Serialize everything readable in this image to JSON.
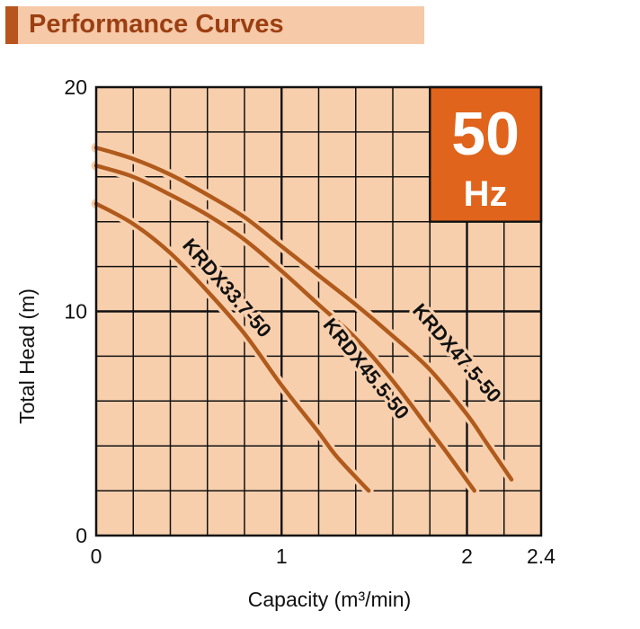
{
  "header": {
    "title": "Performance Curves"
  },
  "badge": {
    "value": "50",
    "unit": "Hz",
    "color": "#e0641c"
  },
  "colors": {
    "plot_bg": "#f8cfad",
    "grid": "#111111",
    "curve": "#b05a1c",
    "curve_halo": "#f8cfad"
  },
  "chart_data": {
    "type": "line",
    "title": "Performance Curves",
    "xlabel": "Capacity (m³/min)",
    "ylabel": "Total Head (m)",
    "xlim": [
      0,
      2.4
    ],
    "ylim": [
      0,
      20
    ],
    "x_ticks": [
      0,
      1,
      2,
      2.4
    ],
    "x_tick_labels": [
      "0",
      "1",
      "2",
      "2.4"
    ],
    "y_ticks": [
      0,
      10,
      20
    ],
    "y_tick_labels": [
      "0",
      "10",
      "20"
    ],
    "x_grid_step": 0.2,
    "y_grid_step": 2,
    "series": [
      {
        "name": "KRDX33.7-50",
        "x": [
          0,
          0.2,
          0.4,
          0.6,
          0.8,
          1.0,
          1.2,
          1.3,
          1.47
        ],
        "y": [
          14.8,
          13.9,
          12.6,
          10.9,
          9.0,
          6.7,
          4.6,
          3.5,
          2.0
        ]
      },
      {
        "name": "KRDX45.5-50",
        "x": [
          0,
          0.2,
          0.4,
          0.6,
          0.8,
          1.0,
          1.2,
          1.4,
          1.6,
          1.8,
          1.9,
          2.04
        ],
        "y": [
          16.5,
          16.0,
          15.2,
          14.3,
          13.2,
          11.8,
          10.3,
          8.8,
          6.9,
          4.7,
          3.6,
          2.0
        ]
      },
      {
        "name": "KRDX47.5-50",
        "x": [
          0,
          0.2,
          0.4,
          0.6,
          0.8,
          1.0,
          1.2,
          1.4,
          1.6,
          1.8,
          2.0,
          2.1,
          2.24
        ],
        "y": [
          17.3,
          16.8,
          16.1,
          15.2,
          14.2,
          12.9,
          11.6,
          10.3,
          8.9,
          7.4,
          5.4,
          4.2,
          2.5
        ]
      }
    ],
    "curve_labels": [
      {
        "text": "KRDX33.7-50",
        "x": 0.7,
        "y": 11.0,
        "angle": 49
      },
      {
        "text": "KRDX45.5-50",
        "x": 1.45,
        "y": 7.4,
        "angle": 51
      },
      {
        "text": "KRDX47.5-50",
        "x": 1.94,
        "y": 8.1,
        "angle": 49
      }
    ]
  }
}
